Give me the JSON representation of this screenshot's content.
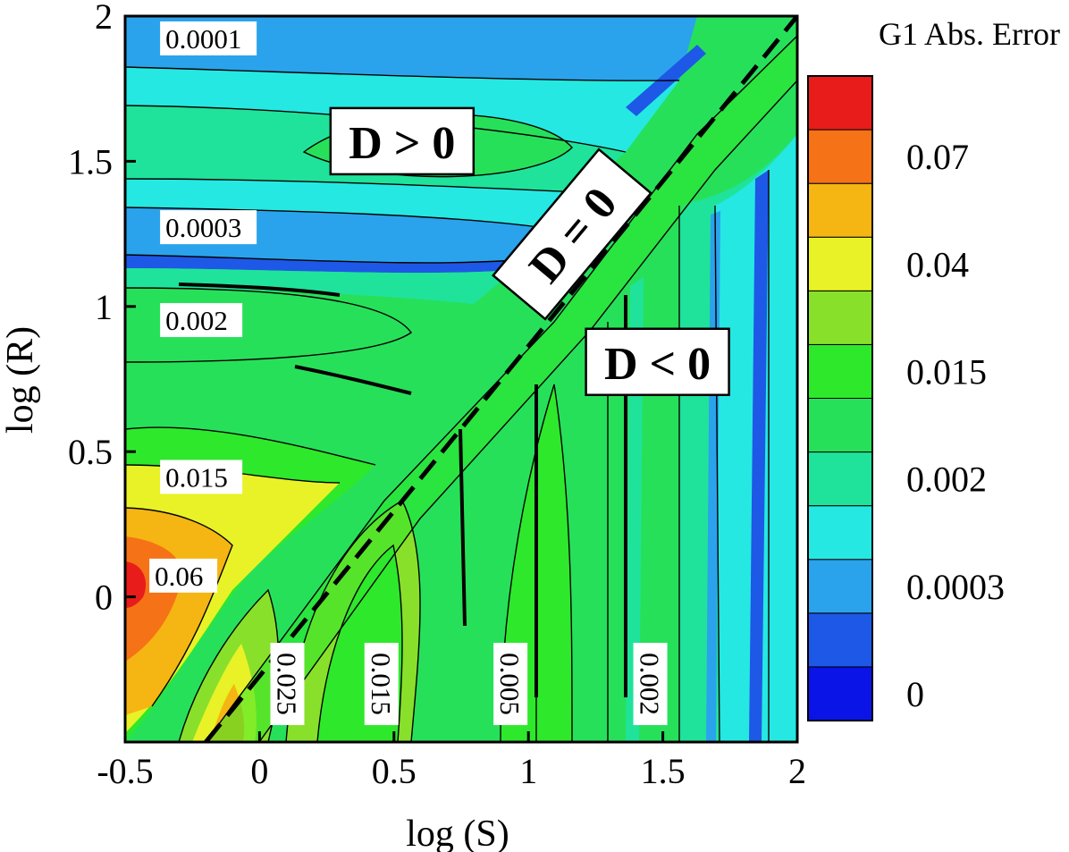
{
  "chart_data": {
    "type": "contour",
    "xlabel": "log (S)",
    "ylabel": "log (R)",
    "xlim": [
      -0.5,
      2
    ],
    "ylim": [
      -0.5,
      2
    ],
    "x_ticks": [
      {
        "value": -0.5,
        "label": "-0.5"
      },
      {
        "value": 0,
        "label": "0"
      },
      {
        "value": 0.5,
        "label": "0.5"
      },
      {
        "value": 1,
        "label": "1"
      },
      {
        "value": 1.5,
        "label": "1.5"
      },
      {
        "value": 2,
        "label": "2"
      }
    ],
    "y_ticks": [
      {
        "value": 0,
        "label": "0"
      },
      {
        "value": 0.5,
        "label": "0.5"
      },
      {
        "value": 1,
        "label": "1"
      },
      {
        "value": 1.5,
        "label": "1.5"
      },
      {
        "value": 2,
        "label": "2"
      }
    ],
    "legend": {
      "title": "G1  Abs. Error",
      "placement": "right",
      "colors": [
        "#0a14e6",
        "#1e58e6",
        "#2aa3ec",
        "#25e8e2",
        "#1fe39a",
        "#27e05a",
        "#2ee82c",
        "#88e02b",
        "#e8f227",
        "#f5b512",
        "#f57216",
        "#e81c1a"
      ],
      "labels": [
        {
          "index": 0,
          "text": "0"
        },
        {
          "index": 2,
          "text": "0.0003"
        },
        {
          "index": 4,
          "text": "0.002"
        },
        {
          "index": 6,
          "text": "0.015"
        },
        {
          "index": 8,
          "text": "0.04"
        },
        {
          "index": 10,
          "text": "0.07"
        }
      ]
    },
    "dividing_line": {
      "label": "D = 0",
      "from": [
        -0.2,
        -0.5
      ],
      "to": [
        2,
        2
      ]
    },
    "regions": [
      {
        "label": "D > 0",
        "x": 0.53,
        "y": 1.56
      },
      {
        "label": "D < 0",
        "x": 1.48,
        "y": 0.8
      }
    ],
    "contour_labels": [
      {
        "text": "0.0001",
        "x": -0.35,
        "y": 1.92
      },
      {
        "text": "0.0003",
        "x": -0.35,
        "y": 1.27
      },
      {
        "text": "0.002",
        "x": -0.35,
        "y": 0.95
      },
      {
        "text": "0.015",
        "x": -0.35,
        "y": 0.41
      },
      {
        "text": "0.06",
        "x": -0.39,
        "y": 0.07
      },
      {
        "text": "0.025",
        "x": 0.1,
        "y": -0.3
      },
      {
        "text": "0.015",
        "x": 0.45,
        "y": -0.3
      },
      {
        "text": "0.005",
        "x": 0.93,
        "y": -0.3
      },
      {
        "text": "0.002",
        "x": 1.45,
        "y": -0.3
      }
    ]
  }
}
